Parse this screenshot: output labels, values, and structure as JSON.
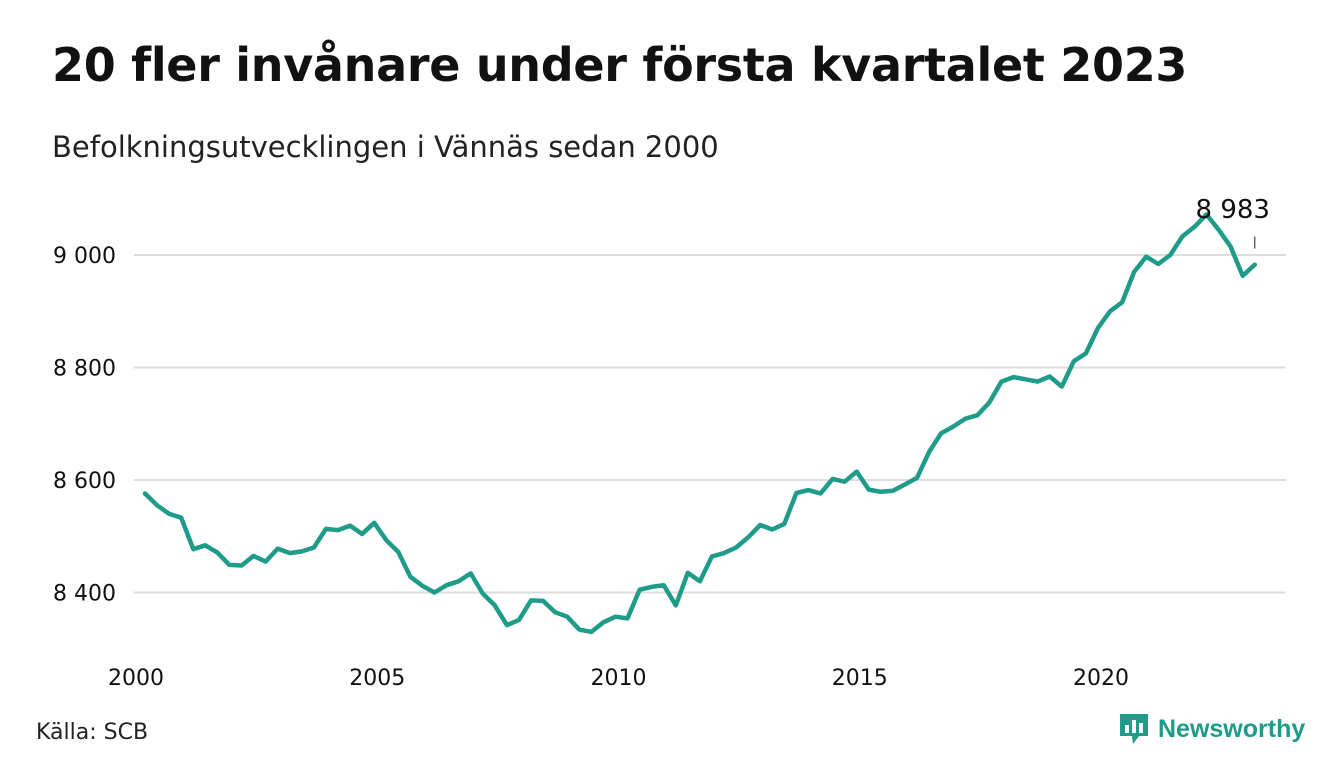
{
  "title": "20 fler invånare under första kvartalet 2023",
  "subtitle": "Befolkningsutvecklingen i Vännäs sedan 2000",
  "source": "Källa: SCB",
  "brand": "Newsworthy",
  "colors": {
    "line": "#1f9b8a",
    "grid": "#dddddd",
    "brand": "#1f9b8a"
  },
  "chart_data": {
    "type": "line",
    "title": "20 fler invånare under första kvartalet 2023",
    "subtitle": "Befolkningsutvecklingen i Vännäs sedan 2000",
    "xlabel": "",
    "ylabel": "",
    "x_start": 2000,
    "x_step": 0.25,
    "xlim": [
      2000,
      2023.75
    ],
    "ylim": [
      8300,
      9080
    ],
    "yticks": [
      8400,
      8600,
      8800,
      9000
    ],
    "ytick_labels": [
      "8 400",
      "8 600",
      "8 800",
      "9 000"
    ],
    "xticks": [
      2000,
      2005,
      2010,
      2015,
      2020
    ],
    "xtick_labels": [
      "2000",
      "2005",
      "2010",
      "2015",
      "2020"
    ],
    "grid": true,
    "annotation": {
      "label": "8 983",
      "value": 8983
    },
    "series": [
      {
        "values": [
          8576,
          8555,
          8540,
          8533,
          8477,
          8484,
          8471,
          8449,
          8448,
          8465,
          8455,
          8478,
          8470,
          8473,
          8480,
          8513,
          8511,
          8519,
          8504,
          8524,
          8493,
          8472,
          8428,
          8412,
          8400,
          8413,
          8420,
          8434,
          8398,
          8377,
          8342,
          8351,
          8386,
          8385,
          8365,
          8357,
          8334,
          8330,
          8347,
          8357,
          8354,
          8405,
          8410,
          8413,
          8377,
          8435,
          8420,
          8464,
          8470,
          8480,
          8498,
          8520,
          8512,
          8522,
          8577,
          8582,
          8576,
          8602,
          8597,
          8615,
          8583,
          8579,
          8581,
          8592,
          8604,
          8650,
          8683,
          8695,
          8709,
          8715,
          8738,
          8775,
          8783,
          8779,
          8775,
          8784,
          8766,
          8811,
          8825,
          8870,
          8900,
          8916,
          8970,
          8997,
          8984,
          9000,
          9033,
          9050,
          9072,
          9045,
          9015,
          8963,
          8983
        ]
      }
    ]
  }
}
